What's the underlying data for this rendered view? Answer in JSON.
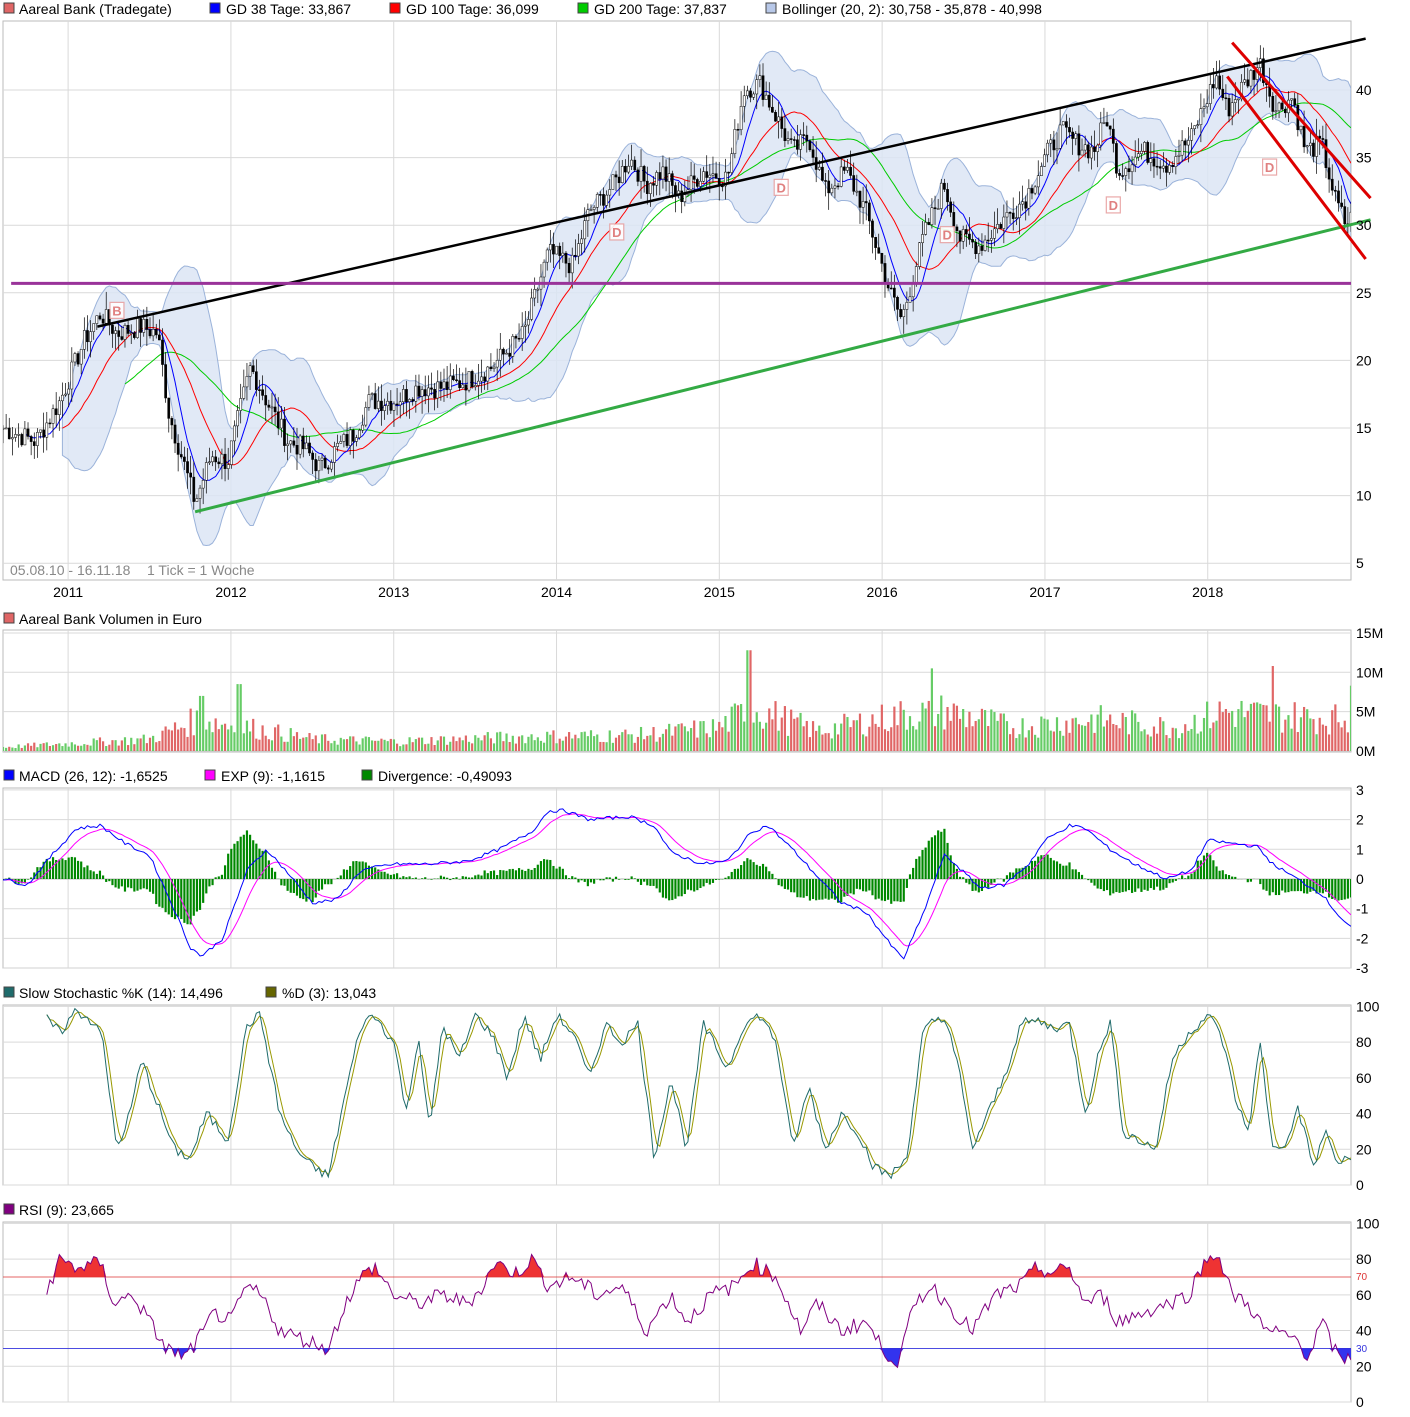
{
  "colors": {
    "up": "#e06666",
    "down": "#66cc66",
    "ma38": "#0000ff",
    "ma100": "#ff0000",
    "ma200": "#00cc00",
    "boll_fill": "#dce6f5",
    "boll_line": "#8aa6d4",
    "black_trend": "#000000",
    "green_trend": "#33aa44",
    "purple": "#993399",
    "red_channel": "#dd0000",
    "macd": "#0000ff",
    "exp": "#ff00ff",
    "div": "#008800",
    "stoch_k": "#1f6b6b",
    "stoch_d": "#999900",
    "rsi": "#800080",
    "rsi_over": "#ee3333",
    "rsi_under": "#3333ee"
  },
  "panels": {
    "price": {
      "legend": [
        {
          "label": "Aareal Bank (Tradegate)",
          "color": "#e06666"
        },
        {
          "label": "GD 38 Tage: 33,867",
          "color": "#0000ff"
        },
        {
          "label": "GD 100 Tage: 36,099",
          "color": "#ff0000"
        },
        {
          "label": "GD 200 Tage: 37,837",
          "color": "#00cc00"
        },
        {
          "label": "Bollinger (20, 2): 30,758 - 35,878 - 40,998",
          "color": "#8aa6d4"
        }
      ],
      "yticks": [
        "5",
        "10",
        "15",
        "20",
        "25",
        "30",
        "35",
        "40"
      ],
      "date_range": "05.08.10 - 16.11.18",
      "tick_note": "1 Tick = 1 Woche",
      "markers": [
        "B",
        "D",
        "D",
        "D",
        "D",
        "D"
      ]
    },
    "volume": {
      "legend": [
        {
          "label": "Aareal Bank Volumen in Euro",
          "color": "#e06666"
        }
      ],
      "yticks": [
        "0M",
        "5M",
        "10M",
        "15M"
      ]
    },
    "macd": {
      "legend": [
        {
          "label": "MACD (26, 12): -1,6525",
          "color": "#0000ff"
        },
        {
          "label": "EXP (9): -1,1615",
          "color": "#ff00ff"
        },
        {
          "label": "Divergence: -0,49093",
          "color": "#008800"
        }
      ],
      "yticks": [
        "-3",
        "-2",
        "-1",
        "0",
        "1",
        "2",
        "3"
      ]
    },
    "stoch": {
      "legend": [
        {
          "label": "Slow Stochastic %K (14): 14,496",
          "color": "#1f6b6b"
        },
        {
          "label": "%D (3): 13,043",
          "color": "#666600"
        }
      ],
      "yticks": [
        "0",
        "20",
        "40",
        "60",
        "80",
        "100"
      ]
    },
    "rsi": {
      "legend": [
        {
          "label": "RSI (9): 23,665",
          "color": "#800080"
        }
      ],
      "yticks": [
        "0",
        "20",
        "40",
        "60",
        "80",
        "100"
      ],
      "level_high": "70",
      "level_low": "30"
    }
  },
  "x_labels": [
    "2011",
    "2012",
    "2013",
    "2014",
    "2015",
    "2016",
    "2017",
    "2018"
  ],
  "chart_data": {
    "type": "line",
    "title": "Aareal Bank (Tradegate)",
    "period": "05.08.10 - 16.11.18",
    "interval": "1 Tick = 1 Woche",
    "x_start_year": 2010.6,
    "x_end_year": 2018.88,
    "price_keypoints": [
      [
        2010.6,
        15.0
      ],
      [
        2010.8,
        14.0
      ],
      [
        2010.95,
        17.0
      ],
      [
        2011.1,
        21.5
      ],
      [
        2011.2,
        23.5
      ],
      [
        2011.3,
        22.0
      ],
      [
        2011.45,
        22.5
      ],
      [
        2011.55,
        22.0
      ],
      [
        2011.62,
        16.0
      ],
      [
        2011.72,
        12.0
      ],
      [
        2011.78,
        9.5
      ],
      [
        2011.88,
        13.0
      ],
      [
        2011.98,
        12.5
      ],
      [
        2012.12,
        19.5
      ],
      [
        2012.22,
        17.0
      ],
      [
        2012.35,
        14.0
      ],
      [
        2012.45,
        13.5
      ],
      [
        2012.55,
        12.0
      ],
      [
        2012.65,
        13.5
      ],
      [
        2012.75,
        14.5
      ],
      [
        2012.85,
        17.0
      ],
      [
        2013.0,
        17.0
      ],
      [
        2013.15,
        18.0
      ],
      [
        2013.3,
        18.0
      ],
      [
        2013.45,
        18.5
      ],
      [
        2013.6,
        19.5
      ],
      [
        2013.8,
        22.0
      ],
      [
        2013.95,
        28.0
      ],
      [
        2014.1,
        27.0
      ],
      [
        2014.2,
        31.0
      ],
      [
        2014.35,
        33.0
      ],
      [
        2014.45,
        35.0
      ],
      [
        2014.55,
        33.0
      ],
      [
        2014.65,
        34.0
      ],
      [
        2014.75,
        32.0
      ],
      [
        2014.9,
        34.0
      ],
      [
        2015.05,
        33.5
      ],
      [
        2015.15,
        40.0
      ],
      [
        2015.25,
        40.5
      ],
      [
        2015.35,
        38.0
      ],
      [
        2015.45,
        35.5
      ],
      [
        2015.55,
        36.5
      ],
      [
        2015.65,
        32.5
      ],
      [
        2015.78,
        34.0
      ],
      [
        2015.9,
        31.0
      ],
      [
        2016.05,
        25.0
      ],
      [
        2016.12,
        23.0
      ],
      [
        2016.25,
        29.0
      ],
      [
        2016.38,
        33.0
      ],
      [
        2016.48,
        29.0
      ],
      [
        2016.6,
        28.5
      ],
      [
        2016.75,
        30.5
      ],
      [
        2016.88,
        32.0
      ],
      [
        2017.0,
        35.0
      ],
      [
        2017.1,
        37.0
      ],
      [
        2017.2,
        36.0
      ],
      [
        2017.3,
        35.5
      ],
      [
        2017.38,
        38.0
      ],
      [
        2017.45,
        34.0
      ],
      [
        2017.6,
        35.5
      ],
      [
        2017.75,
        34.5
      ],
      [
        2017.9,
        36.5
      ],
      [
        2018.05,
        41.0
      ],
      [
        2018.12,
        38.5
      ],
      [
        2018.2,
        40.0
      ],
      [
        2018.32,
        42.0
      ],
      [
        2018.42,
        38.5
      ],
      [
        2018.52,
        39.5
      ],
      [
        2018.6,
        35.5
      ],
      [
        2018.7,
        36.0
      ],
      [
        2018.78,
        32.0
      ],
      [
        2018.85,
        30.0
      ],
      [
        2018.88,
        30.5
      ]
    ],
    "trendlines": [
      {
        "name": "black",
        "from": [
          2011.18,
          22.5
        ],
        "to": [
          2018.97,
          43.8
        ]
      },
      {
        "name": "green",
        "from": [
          2011.78,
          8.8
        ],
        "to": [
          2019.0,
          30.4
        ]
      },
      {
        "name": "purple",
        "from": [
          2010.65,
          25.7
        ],
        "to": [
          2018.88,
          25.7
        ]
      },
      {
        "name": "red-upper",
        "from": [
          2018.15,
          43.5
        ],
        "to": [
          2019.0,
          32.0
        ]
      },
      {
        "name": "red-lower",
        "from": [
          2018.12,
          41.0
        ],
        "to": [
          2018.97,
          27.5
        ]
      }
    ],
    "marker_points": [
      [
        2011.3,
        23.7
      ],
      [
        2014.37,
        29.5
      ],
      [
        2015.38,
        32.8
      ],
      [
        2016.4,
        29.3
      ],
      [
        2017.42,
        31.5
      ],
      [
        2018.38,
        34.3
      ]
    ],
    "macd_keypoints": [
      [
        2010.6,
        0.0
      ],
      [
        2010.75,
        -0.2
      ],
      [
        2010.9,
        0.8
      ],
      [
        2011.05,
        1.7
      ],
      [
        2011.2,
        1.8
      ],
      [
        2011.35,
        1.2
      ],
      [
        2011.5,
        0.8
      ],
      [
        2011.65,
        -1.0
      ],
      [
        2011.75,
        -2.3
      ],
      [
        2011.82,
        -2.6
      ],
      [
        2011.95,
        -2.0
      ],
      [
        2012.1,
        0.3
      ],
      [
        2012.22,
        1.0
      ],
      [
        2012.35,
        0.2
      ],
      [
        2012.5,
        -0.8
      ],
      [
        2012.65,
        -0.7
      ],
      [
        2012.8,
        0.3
      ],
      [
        2013.0,
        0.5
      ],
      [
        2013.2,
        0.5
      ],
      [
        2013.45,
        0.6
      ],
      [
        2013.65,
        1.0
      ],
      [
        2013.85,
        1.6
      ],
      [
        2013.95,
        2.3
      ],
      [
        2014.05,
        2.3
      ],
      [
        2014.2,
        2.0
      ],
      [
        2014.45,
        2.1
      ],
      [
        2014.6,
        1.8
      ],
      [
        2014.7,
        0.9
      ],
      [
        2014.9,
        0.5
      ],
      [
        2015.05,
        0.6
      ],
      [
        2015.2,
        1.6
      ],
      [
        2015.3,
        1.8
      ],
      [
        2015.45,
        1.0
      ],
      [
        2015.6,
        0.1
      ],
      [
        2015.75,
        -0.8
      ],
      [
        2015.9,
        -1.1
      ],
      [
        2016.05,
        -2.2
      ],
      [
        2016.13,
        -2.7
      ],
      [
        2016.25,
        -1.2
      ],
      [
        2016.38,
        0.8
      ],
      [
        2016.45,
        0.5
      ],
      [
        2016.6,
        -0.3
      ],
      [
        2016.75,
        -0.2
      ],
      [
        2016.9,
        0.5
      ],
      [
        2017.0,
        1.3
      ],
      [
        2017.15,
        1.8
      ],
      [
        2017.25,
        1.7
      ],
      [
        2017.4,
        1.0
      ],
      [
        2017.55,
        0.5
      ],
      [
        2017.75,
        0.0
      ],
      [
        2017.9,
        0.3
      ],
      [
        2018.0,
        1.3
      ],
      [
        2018.15,
        1.2
      ],
      [
        2018.3,
        1.1
      ],
      [
        2018.4,
        0.5
      ],
      [
        2018.55,
        0.0
      ],
      [
        2018.7,
        -0.5
      ],
      [
        2018.8,
        -1.2
      ],
      [
        2018.88,
        -1.65
      ]
    ],
    "stoch_keypoints": [
      [
        2010.85,
        95
      ],
      [
        2010.95,
        85
      ],
      [
        2011.05,
        98
      ],
      [
        2011.2,
        88
      ],
      [
        2011.3,
        20
      ],
      [
        2011.38,
        40
      ],
      [
        2011.45,
        70
      ],
      [
        2011.55,
        45
      ],
      [
        2011.65,
        20
      ],
      [
        2011.75,
        15
      ],
      [
        2011.85,
        40
      ],
      [
        2011.98,
        25
      ],
      [
        2012.1,
        90
      ],
      [
        2012.18,
        95
      ],
      [
        2012.3,
        40
      ],
      [
        2012.4,
        20
      ],
      [
        2012.5,
        10
      ],
      [
        2012.6,
        5
      ],
      [
        2012.7,
        50
      ],
      [
        2012.8,
        90
      ],
      [
        2012.88,
        95
      ],
      [
        2013.0,
        80
      ],
      [
        2013.08,
        40
      ],
      [
        2013.15,
        85
      ],
      [
        2013.22,
        30
      ],
      [
        2013.3,
        90
      ],
      [
        2013.4,
        70
      ],
      [
        2013.5,
        95
      ],
      [
        2013.6,
        85
      ],
      [
        2013.7,
        60
      ],
      [
        2013.8,
        95
      ],
      [
        2013.9,
        70
      ],
      [
        2014.0,
        95
      ],
      [
        2014.1,
        85
      ],
      [
        2014.2,
        60
      ],
      [
        2014.3,
        90
      ],
      [
        2014.4,
        80
      ],
      [
        2014.5,
        90
      ],
      [
        2014.6,
        15
      ],
      [
        2014.7,
        60
      ],
      [
        2014.8,
        20
      ],
      [
        2014.9,
        90
      ],
      [
        2015.05,
        65
      ],
      [
        2015.15,
        90
      ],
      [
        2015.25,
        95
      ],
      [
        2015.35,
        80
      ],
      [
        2015.45,
        20
      ],
      [
        2015.55,
        55
      ],
      [
        2015.65,
        20
      ],
      [
        2015.75,
        40
      ],
      [
        2015.85,
        30
      ],
      [
        2015.95,
        10
      ],
      [
        2016.05,
        5
      ],
      [
        2016.15,
        15
      ],
      [
        2016.25,
        85
      ],
      [
        2016.32,
        92
      ],
      [
        2016.4,
        92
      ],
      [
        2016.48,
        60
      ],
      [
        2016.55,
        20
      ],
      [
        2016.65,
        40
      ],
      [
        2016.75,
        60
      ],
      [
        2016.85,
        90
      ],
      [
        2016.95,
        92
      ],
      [
        2017.05,
        88
      ],
      [
        2017.15,
        90
      ],
      [
        2017.25,
        40
      ],
      [
        2017.32,
        70
      ],
      [
        2017.4,
        92
      ],
      [
        2017.48,
        30
      ],
      [
        2017.58,
        25
      ],
      [
        2017.68,
        20
      ],
      [
        2017.78,
        70
      ],
      [
        2017.88,
        85
      ],
      [
        2018.0,
        95
      ],
      [
        2018.08,
        85
      ],
      [
        2018.18,
        45
      ],
      [
        2018.25,
        30
      ],
      [
        2018.32,
        80
      ],
      [
        2018.4,
        20
      ],
      [
        2018.5,
        25
      ],
      [
        2018.55,
        45
      ],
      [
        2018.65,
        10
      ],
      [
        2018.72,
        30
      ],
      [
        2018.8,
        12
      ],
      [
        2018.88,
        14.5
      ]
    ],
    "rsi_keypoints": [
      [
        2010.85,
        58
      ],
      [
        2010.95,
        80
      ],
      [
        2011.05,
        75
      ],
      [
        2011.2,
        78
      ],
      [
        2011.28,
        55
      ],
      [
        2011.4,
        60
      ],
      [
        2011.5,
        45
      ],
      [
        2011.6,
        30
      ],
      [
        2011.72,
        25
      ],
      [
        2011.8,
        35
      ],
      [
        2011.9,
        50
      ],
      [
        2012.0,
        45
      ],
      [
        2012.1,
        65
      ],
      [
        2012.2,
        58
      ],
      [
        2012.3,
        40
      ],
      [
        2012.45,
        35
      ],
      [
        2012.6,
        30
      ],
      [
        2012.7,
        55
      ],
      [
        2012.8,
        70
      ],
      [
        2012.88,
        76
      ],
      [
        2013.0,
        60
      ],
      [
        2013.15,
        55
      ],
      [
        2013.3,
        60
      ],
      [
        2013.45,
        55
      ],
      [
        2013.55,
        65
      ],
      [
        2013.62,
        78
      ],
      [
        2013.75,
        72
      ],
      [
        2013.85,
        80
      ],
      [
        2013.95,
        65
      ],
      [
        2014.1,
        70
      ],
      [
        2014.25,
        60
      ],
      [
        2014.4,
        65
      ],
      [
        2014.55,
        40
      ],
      [
        2014.7,
        60
      ],
      [
        2014.8,
        45
      ],
      [
        2014.95,
        60
      ],
      [
        2015.1,
        65
      ],
      [
        2015.2,
        78
      ],
      [
        2015.35,
        70
      ],
      [
        2015.5,
        40
      ],
      [
        2015.6,
        55
      ],
      [
        2015.75,
        40
      ],
      [
        2015.9,
        45
      ],
      [
        2016.0,
        30
      ],
      [
        2016.1,
        22
      ],
      [
        2016.2,
        55
      ],
      [
        2016.3,
        65
      ],
      [
        2016.4,
        55
      ],
      [
        2016.55,
        40
      ],
      [
        2016.7,
        60
      ],
      [
        2016.85,
        65
      ],
      [
        2016.95,
        75
      ],
      [
        2017.05,
        72
      ],
      [
        2017.15,
        75
      ],
      [
        2017.25,
        55
      ],
      [
        2017.35,
        60
      ],
      [
        2017.45,
        45
      ],
      [
        2017.6,
        50
      ],
      [
        2017.75,
        55
      ],
      [
        2017.88,
        60
      ],
      [
        2017.98,
        78
      ],
      [
        2018.05,
        85
      ],
      [
        2018.15,
        60
      ],
      [
        2018.25,
        55
      ],
      [
        2018.35,
        40
      ],
      [
        2018.45,
        38
      ],
      [
        2018.55,
        35
      ],
      [
        2018.62,
        25
      ],
      [
        2018.7,
        45
      ],
      [
        2018.8,
        25
      ],
      [
        2018.88,
        23.7
      ]
    ],
    "volume_keypoints": [
      [
        2010.6,
        0.5
      ],
      [
        2011.5,
        1.5
      ],
      [
        2011.8,
        4.0
      ],
      [
        2012.1,
        3.0
      ],
      [
        2012.5,
        1.5
      ],
      [
        2013.0,
        1.2
      ],
      [
        2013.8,
        1.8
      ],
      [
        2014.5,
        2.0
      ],
      [
        2015.0,
        3.0
      ],
      [
        2015.2,
        5.5
      ],
      [
        2015.6,
        2.5
      ],
      [
        2016.1,
        4.5
      ],
      [
        2016.4,
        5.0
      ],
      [
        2016.8,
        3.0
      ],
      [
        2017.3,
        4.0
      ],
      [
        2017.8,
        3.0
      ],
      [
        2018.1,
        5.0
      ],
      [
        2018.4,
        4.5
      ],
      [
        2018.88,
        4.0
      ]
    ],
    "volume_peaks": [
      [
        2011.82,
        7.0
      ],
      [
        2012.05,
        8.5
      ],
      [
        2015.18,
        12.8
      ],
      [
        2016.3,
        10.5
      ],
      [
        2018.4,
        10.8
      ],
      [
        2018.88,
        8.3
      ]
    ]
  }
}
